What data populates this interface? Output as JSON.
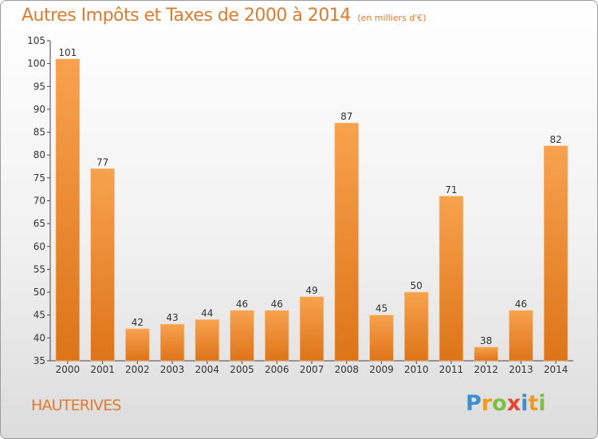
{
  "chart_data": {
    "type": "bar",
    "title": "Autres Impôts et Taxes de 2000 à 2014",
    "subtitle": "(en milliers d'€)",
    "categories": [
      "2000",
      "2001",
      "2002",
      "2003",
      "2004",
      "2005",
      "2006",
      "2007",
      "2008",
      "2009",
      "2010",
      "2011",
      "2012",
      "2013",
      "2014"
    ],
    "values": [
      101,
      77,
      42,
      43,
      44,
      46,
      46,
      49,
      87,
      45,
      50,
      71,
      38,
      46,
      82
    ],
    "ylim": [
      35,
      105
    ],
    "yticks": [
      35,
      40,
      45,
      50,
      55,
      60,
      65,
      70,
      75,
      80,
      85,
      90,
      95,
      100,
      105
    ],
    "xlabel": "",
    "ylabel": "",
    "grid": false,
    "bar_color": "#f08a2c"
  },
  "place_name": "HAUTERIVES",
  "logo": {
    "text": "Proxiti",
    "letters": [
      {
        "ch": "P",
        "color": "#3a8fd6"
      },
      {
        "ch": "r",
        "color": "#f29a1e"
      },
      {
        "ch": "o",
        "color": "#7cc242"
      },
      {
        "ch": "x",
        "color": "#e8432e"
      },
      {
        "ch": "i",
        "color": "#3a8fd6"
      },
      {
        "ch": "t",
        "color": "#f29a1e"
      },
      {
        "ch": "i",
        "color": "#7cc242"
      }
    ]
  }
}
